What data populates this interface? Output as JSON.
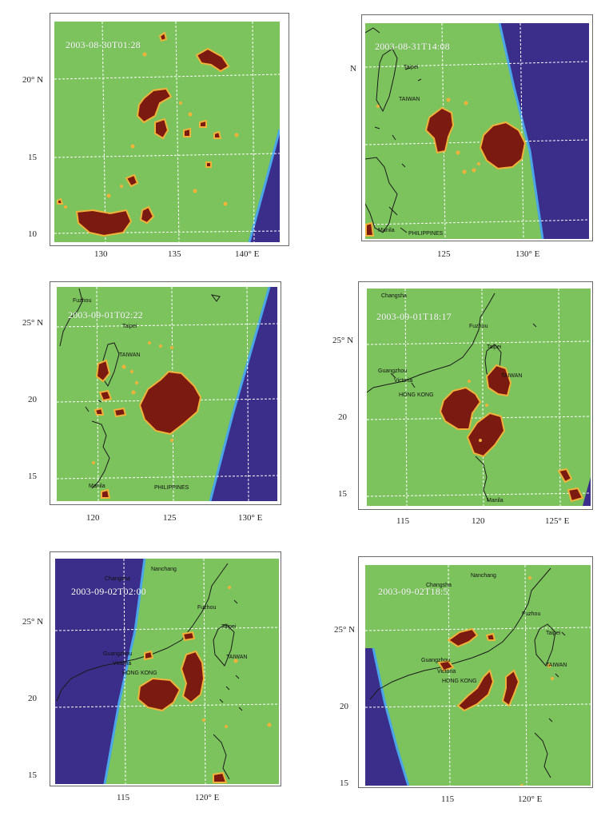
{
  "colors": {
    "background_land_sea": "#7cc35e",
    "no_data": "#3a2e8a",
    "no_data_edge": "#4aa6e8",
    "storm_core": "#7a1a10",
    "storm_edge": "#f2b23a",
    "grid": "#ffffff",
    "coast": "#1a1a1a"
  },
  "panels": [
    {
      "id": "p1",
      "timestamp": "2003-08-30T01:28",
      "x_ticks": [
        "130",
        "135",
        "140° E"
      ],
      "y_ticks": [
        "20° N",
        "15",
        "10"
      ],
      "places": []
    },
    {
      "id": "p2",
      "timestamp": "2003-08-31T14:08",
      "x_ticks": [
        "125",
        "130° E"
      ],
      "y_ticks": [
        "N"
      ],
      "places": [
        "Taipei",
        "TAIWAN",
        "Manila",
        "PHILIPPINES"
      ]
    },
    {
      "id": "p3",
      "timestamp": "2003-09-01T02:22",
      "x_ticks": [
        "120",
        "125",
        "130° E"
      ],
      "y_ticks": [
        "25° N",
        "20",
        "15"
      ],
      "places": [
        "Fuzhou",
        "Taipei",
        "TAIWAN",
        "Manila",
        "PHILIPPINES"
      ]
    },
    {
      "id": "p4",
      "timestamp": "2003-09-01T18:17",
      "x_ticks": [
        "115",
        "120",
        "125° E"
      ],
      "y_ticks": [
        "25° N",
        "20",
        "15"
      ],
      "places": [
        "Changsha",
        "Fuzhou",
        "Taipei",
        "Guangzhou",
        "Victoria",
        "HONG KONG",
        "TAIWAN",
        "Manila"
      ]
    },
    {
      "id": "p5",
      "timestamp": "2003-09-02T02:00",
      "x_ticks": [
        "115",
        "120° E"
      ],
      "y_ticks": [
        "25° N",
        "20",
        "15"
      ],
      "places": [
        "Nanchang",
        "Changsha",
        "Fuzhou",
        "Taipei",
        "Guangzhou",
        "Victoria",
        "HONG KONG",
        "TAIWAN"
      ]
    },
    {
      "id": "p6",
      "timestamp": "2003-09-02T18:5",
      "x_ticks": [
        "115",
        "120° E"
      ],
      "y_ticks": [
        "25° N",
        "20",
        "15"
      ],
      "places": [
        "Changsha",
        "Nanchang",
        "Fuzhou",
        "Taipei",
        "Guangzhou",
        "Victoria",
        "HONG KONG",
        "TAIWAN"
      ]
    }
  ]
}
